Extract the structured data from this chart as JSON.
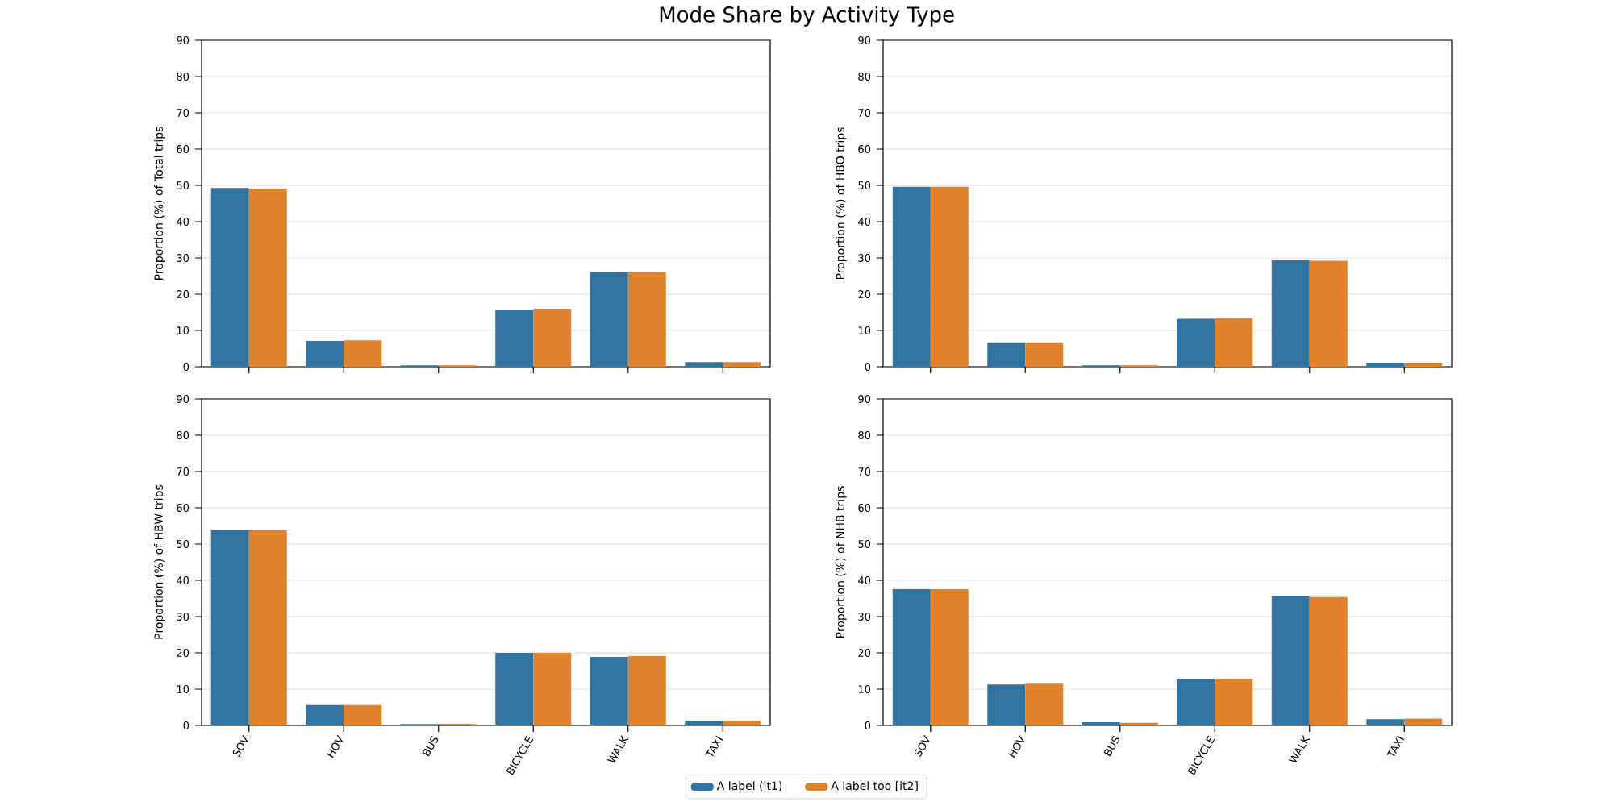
{
  "chart_data": [
    {
      "type": "bar",
      "title": "Mode Share by Activity Type",
      "ylabel": "Proportion (%) of Total trips",
      "categories": [
        null,
        null,
        null,
        null,
        null,
        null
      ],
      "series": [
        {
          "color": "#3274a1",
          "values": [
            49.3,
            7.1,
            0.4,
            15.8,
            26.0,
            1.3
          ]
        },
        {
          "color": "#e1812c",
          "values": [
            49.1,
            7.3,
            0.4,
            16.0,
            26.0,
            1.3
          ]
        }
      ],
      "ylim": [
        0,
        90
      ],
      "yticks": [
        0,
        10,
        20,
        30,
        40,
        50,
        60,
        70,
        80,
        90
      ],
      "grid": "y",
      "tick_labels": "y"
    },
    {
      "type": "bar",
      "ylabel": "Proportion (%) of HBO trips",
      "categories": [
        null,
        null,
        null,
        null,
        null,
        null
      ],
      "series": [
        {
          "color": "#3274a1",
          "values": [
            49.6,
            6.7,
            0.4,
            13.2,
            29.4,
            1.1
          ]
        },
        {
          "color": "#e1812c",
          "values": [
            49.6,
            6.7,
            0.4,
            13.4,
            29.2,
            1.1
          ]
        }
      ],
      "ylim": [
        0,
        90
      ],
      "yticks": [
        0,
        10,
        20,
        30,
        40,
        50,
        60,
        70,
        80,
        90
      ],
      "grid": "y",
      "tick_labels": "y"
    },
    {
      "type": "bar",
      "ylabel": "Proportion (%) of HBW trips",
      "categories": [
        "SOV",
        "HOV",
        "BUS",
        "BICYCLE",
        "WALK",
        "TAXI"
      ],
      "series": [
        {
          "color": "#3274a1",
          "values": [
            53.8,
            5.6,
            0.4,
            20.0,
            18.9,
            1.3
          ]
        },
        {
          "color": "#e1812c",
          "values": [
            53.8,
            5.6,
            0.4,
            20.0,
            19.1,
            1.3
          ]
        }
      ],
      "ylim": [
        0,
        90
      ],
      "yticks": [
        0,
        10,
        20,
        30,
        40,
        50,
        60,
        70,
        80,
        90
      ],
      "grid": "y"
    },
    {
      "type": "bar",
      "ylabel": "Proportion (%) of NHB trips",
      "categories": [
        "SOV",
        "HOV",
        "BUS",
        "BICYCLE",
        "WALK",
        "TAXI"
      ],
      "series": [
        {
          "name": "A label (it1)",
          "color": "#3274a1",
          "values": [
            37.6,
            11.3,
            0.9,
            12.9,
            35.6,
            1.7
          ]
        },
        {
          "name": "A label too [it2]",
          "color": "#e1812c",
          "values": [
            37.6,
            11.5,
            0.7,
            12.9,
            35.4,
            1.9
          ]
        }
      ],
      "ylim": [
        0,
        90
      ],
      "yticks": [
        0,
        10,
        20,
        30,
        40,
        50,
        60,
        70,
        80,
        90
      ],
      "grid": "y",
      "legend": "bottom"
    }
  ]
}
